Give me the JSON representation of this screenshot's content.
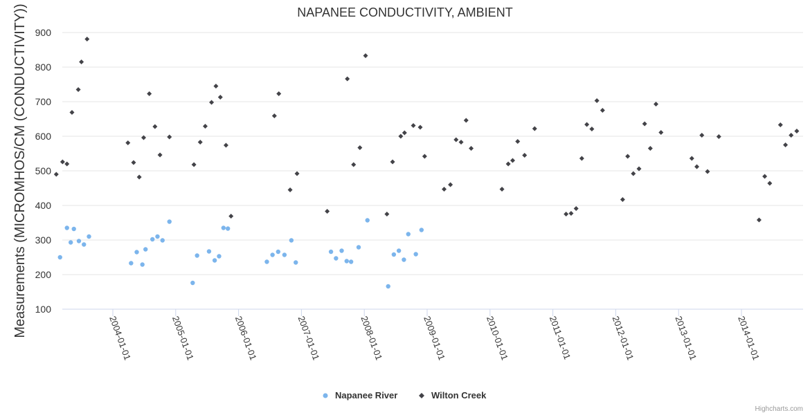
{
  "chart_data": {
    "type": "scatter",
    "title": "NAPANEE CONDUCTIVITY, AMBIENT",
    "ylabel": "Measurements (MICROMHOS/CM (CONDUCTIVITY))",
    "xlabel": "",
    "ylim": [
      100,
      920
    ],
    "xlim": [
      2003.05,
      2014.95
    ],
    "yticks": [
      100,
      200,
      300,
      400,
      500,
      600,
      700,
      800,
      900
    ],
    "xticks": [
      {
        "value": 2004,
        "label": "2004-01-01"
      },
      {
        "value": 2005,
        "label": "2005-01-01"
      },
      {
        "value": 2006,
        "label": "2006-01-01"
      },
      {
        "value": 2007,
        "label": "2007-01-01"
      },
      {
        "value": 2008,
        "label": "2008-01-01"
      },
      {
        "value": 2009,
        "label": "2009-01-01"
      },
      {
        "value": 2010,
        "label": "2010-01-01"
      },
      {
        "value": 2011,
        "label": "2011-01-01"
      },
      {
        "value": 2012,
        "label": "2012-01-01"
      },
      {
        "value": 2013,
        "label": "2013-01-01"
      },
      {
        "value": 2014,
        "label": "2014-01-01"
      }
    ],
    "legend_position": "bottom-center",
    "series": [
      {
        "name": "Napanee River",
        "marker": "circle",
        "color": "#7cb5ec",
        "points": [
          [
            2003.16,
            250
          ],
          [
            2003.27,
            335
          ],
          [
            2003.33,
            293
          ],
          [
            2003.38,
            332
          ],
          [
            2003.46,
            297
          ],
          [
            2003.54,
            287
          ],
          [
            2003.62,
            310
          ],
          [
            2004.29,
            233
          ],
          [
            2004.38,
            265
          ],
          [
            2004.47,
            229
          ],
          [
            2004.52,
            273
          ],
          [
            2004.63,
            302
          ],
          [
            2004.71,
            310
          ],
          [
            2004.79,
            299
          ],
          [
            2004.9,
            353
          ],
          [
            2005.27,
            176
          ],
          [
            2005.34,
            255
          ],
          [
            2005.53,
            267
          ],
          [
            2005.62,
            241
          ],
          [
            2005.69,
            253
          ],
          [
            2005.76,
            335
          ],
          [
            2005.83,
            333
          ],
          [
            2006.45,
            237
          ],
          [
            2006.54,
            257
          ],
          [
            2006.63,
            266
          ],
          [
            2006.73,
            257
          ],
          [
            2006.84,
            299
          ],
          [
            2006.91,
            235
          ],
          [
            2007.47,
            266
          ],
          [
            2007.55,
            247
          ],
          [
            2007.64,
            269
          ],
          [
            2007.72,
            239
          ],
          [
            2007.79,
            237
          ],
          [
            2007.91,
            279
          ],
          [
            2008.05,
            357
          ],
          [
            2008.38,
            166
          ],
          [
            2008.47,
            258
          ],
          [
            2008.55,
            269
          ],
          [
            2008.63,
            243
          ],
          [
            2008.7,
            317
          ],
          [
            2008.82,
            259
          ],
          [
            2008.91,
            329
          ]
        ]
      },
      {
        "name": "Wilton Creek",
        "marker": "diamond",
        "color": "#434348",
        "points": [
          [
            2003.1,
            490
          ],
          [
            2003.2,
            526
          ],
          [
            2003.27,
            520
          ],
          [
            2003.35,
            669
          ],
          [
            2003.45,
            735
          ],
          [
            2003.5,
            815
          ],
          [
            2003.59,
            881
          ],
          [
            2004.24,
            581
          ],
          [
            2004.33,
            524
          ],
          [
            2004.42,
            482
          ],
          [
            2004.49,
            596
          ],
          [
            2004.58,
            723
          ],
          [
            2004.67,
            628
          ],
          [
            2004.75,
            546
          ],
          [
            2004.9,
            598
          ],
          [
            2005.29,
            518
          ],
          [
            2005.39,
            583
          ],
          [
            2005.47,
            629
          ],
          [
            2005.57,
            698
          ],
          [
            2005.64,
            745
          ],
          [
            2005.71,
            713
          ],
          [
            2005.8,
            574
          ],
          [
            2005.88,
            369
          ],
          [
            2006.57,
            659
          ],
          [
            2006.64,
            723
          ],
          [
            2006.82,
            445
          ],
          [
            2006.93,
            492
          ],
          [
            2007.41,
            383
          ],
          [
            2007.73,
            766
          ],
          [
            2007.83,
            518
          ],
          [
            2007.93,
            567
          ],
          [
            2008.02,
            833
          ],
          [
            2008.36,
            375
          ],
          [
            2008.45,
            526
          ],
          [
            2008.58,
            600
          ],
          [
            2008.64,
            610
          ],
          [
            2008.78,
            631
          ],
          [
            2008.89,
            626
          ],
          [
            2008.96,
            542
          ],
          [
            2009.27,
            447
          ],
          [
            2009.37,
            460
          ],
          [
            2009.46,
            590
          ],
          [
            2009.54,
            583
          ],
          [
            2009.62,
            646
          ],
          [
            2009.7,
            565
          ],
          [
            2010.19,
            447
          ],
          [
            2010.29,
            520
          ],
          [
            2010.36,
            530
          ],
          [
            2010.44,
            585
          ],
          [
            2010.55,
            545
          ],
          [
            2010.71,
            622
          ],
          [
            2011.21,
            375
          ],
          [
            2011.29,
            377
          ],
          [
            2011.37,
            391
          ],
          [
            2011.46,
            536
          ],
          [
            2011.54,
            634
          ],
          [
            2011.62,
            621
          ],
          [
            2011.7,
            703
          ],
          [
            2011.79,
            675
          ],
          [
            2012.11,
            417
          ],
          [
            2012.19,
            542
          ],
          [
            2012.28,
            492
          ],
          [
            2012.37,
            506
          ],
          [
            2012.46,
            636
          ],
          [
            2012.55,
            565
          ],
          [
            2012.64,
            693
          ],
          [
            2012.72,
            611
          ],
          [
            2013.21,
            536
          ],
          [
            2013.29,
            512
          ],
          [
            2013.37,
            603
          ],
          [
            2013.46,
            498
          ],
          [
            2013.64,
            599
          ],
          [
            2014.28,
            358
          ],
          [
            2014.37,
            484
          ],
          [
            2014.45,
            464
          ],
          [
            2014.62,
            633
          ],
          [
            2014.7,
            575
          ],
          [
            2014.79,
            603
          ],
          [
            2014.88,
            615
          ]
        ]
      }
    ]
  },
  "credits": "Highcharts.com"
}
